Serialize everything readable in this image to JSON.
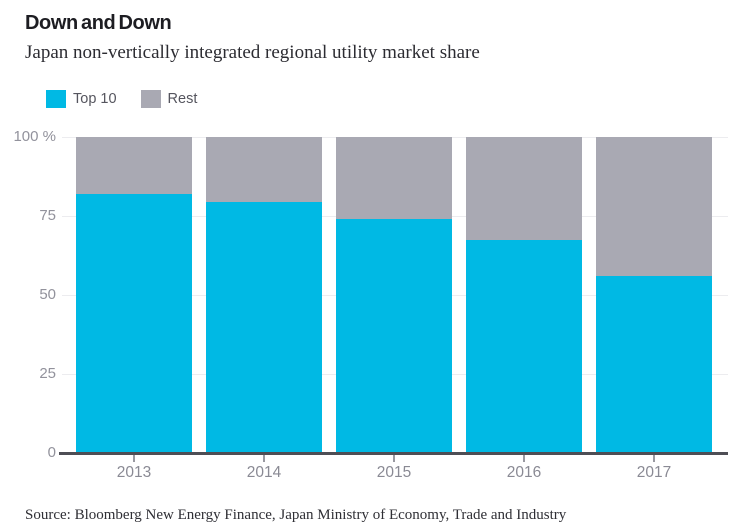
{
  "header": {
    "title": "Down and Down",
    "subtitle": "Japan non-vertically integrated regional utility market share"
  },
  "legend": [
    {
      "label": "Top 10",
      "color": "#00b9e4"
    },
    {
      "label": "Rest",
      "color": "#a9a9b3"
    }
  ],
  "chart_data": {
    "type": "bar",
    "stacked": true,
    "title": "Down and Down",
    "subtitle": "Japan non-vertically integrated regional utility market share",
    "categories": [
      "2013",
      "2014",
      "2015",
      "2016",
      "2017"
    ],
    "series": [
      {
        "name": "Top 10",
        "color": "#00b9e4",
        "values": [
          82,
          79.5,
          74,
          67.5,
          56
        ]
      },
      {
        "name": "Rest",
        "color": "#a9a9b3",
        "values": [
          18,
          20.5,
          26,
          32.5,
          44
        ]
      }
    ],
    "xlabel": "",
    "ylabel": "",
    "ylim": [
      0,
      100
    ],
    "y_ticks": [
      0,
      25,
      50,
      75,
      100
    ],
    "y_tick_labels": [
      "0",
      "25",
      "50",
      "75",
      "100 %"
    ],
    "grid": true,
    "legend_position": "top-left"
  },
  "colors": {
    "top10": "#00b9e4",
    "rest": "#a9a9b3",
    "gridline": "#ececef",
    "axis": "#4e4e55",
    "y_label": "#92929c",
    "x_label": "#8a8a94",
    "title": "#1d1d22",
    "subtitle": "#2c2c32"
  },
  "source": "Source: Bloomberg New Energy Finance, Japan Ministry of Economy, Trade and Industry"
}
